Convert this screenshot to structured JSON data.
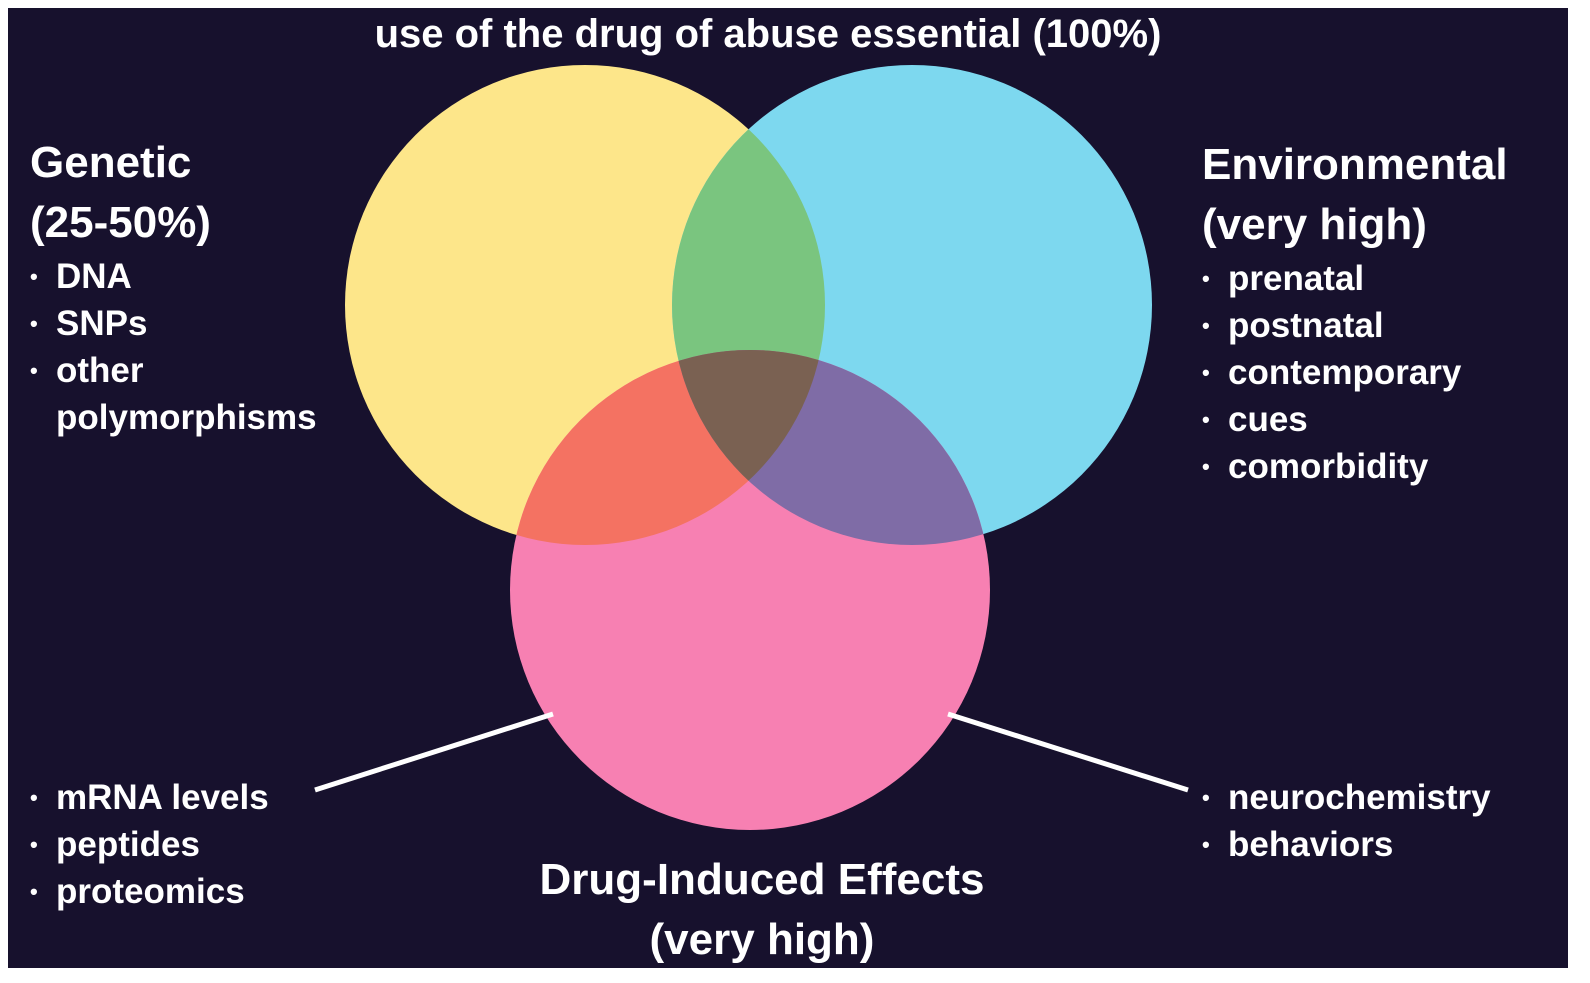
{
  "title": "use of the drug of abuse essential (100%)",
  "genetic": {
    "title": "Genetic",
    "subtitle": "(25-50%)",
    "items": [
      "DNA",
      "SNPs",
      "other polymorphisms"
    ]
  },
  "environmental": {
    "title": "Environmental",
    "subtitle": "(very high)",
    "items": [
      "prenatal",
      "postnatal",
      "contemporary",
      "cues",
      "comorbidity"
    ]
  },
  "drug_induced": {
    "title": "Drug-Induced Effects",
    "subtitle": "(very high)",
    "left_items": [
      "mRNA levels",
      "peptides",
      "proteomics"
    ],
    "right_items": [
      "neurochemistry",
      "behaviors"
    ]
  }
}
